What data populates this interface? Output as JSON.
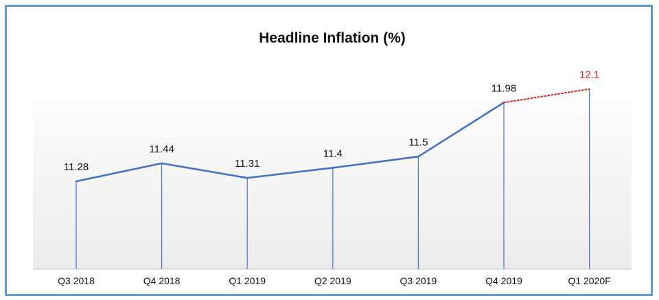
{
  "chart_data": {
    "type": "line",
    "title": "Headline Inflation (%)",
    "xlabel": "",
    "ylabel": "",
    "categories": [
      "Q3 2018",
      "Q4 2018",
      "Q1 2019",
      "Q2 2019",
      "Q3 2019",
      "Q4 2019",
      "Q1 2020F"
    ],
    "values": [
      11.28,
      11.44,
      11.31,
      11.4,
      11.5,
      11.98,
      12.1
    ],
    "data_labels": [
      "11.28",
      "11.44",
      "11.31",
      "11.4",
      "11.5",
      "11.98",
      "12.1"
    ],
    "forecast_from_index": 5,
    "ylim": [
      10.5,
      12.22
    ],
    "grid": false,
    "drop_lines": true,
    "colors": {
      "line": "#4472c4",
      "forecast_line": "#e02020",
      "forecast_label": "#e02020",
      "frame": "#5b9bd5",
      "axis": "#bfbfbf"
    }
  }
}
